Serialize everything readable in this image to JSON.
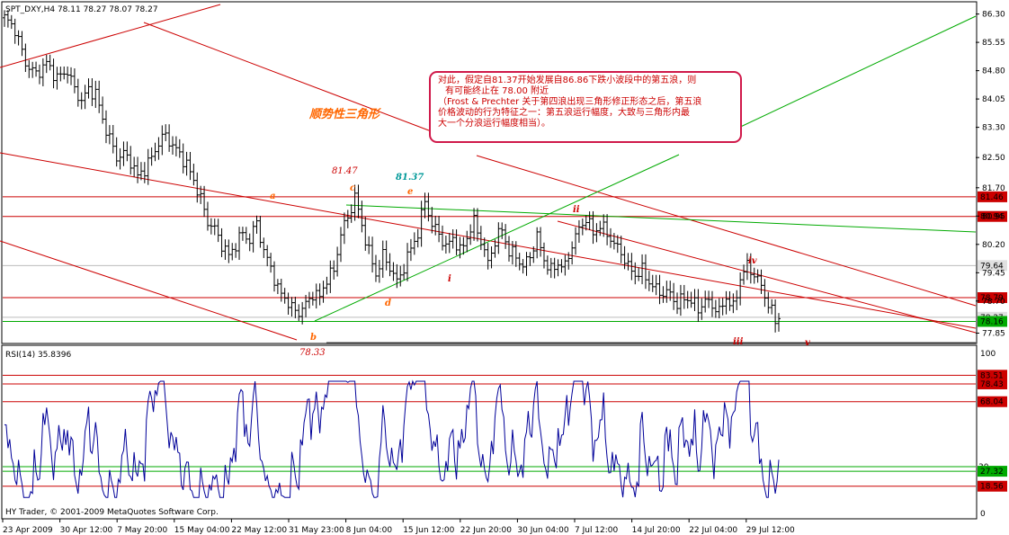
{
  "chart_header": "SPT_DXY,H4  78.11 78.27 78.07 78.27",
  "indicator_header": "RSI(14) 35.8396",
  "footer_credit": "HY Trader, © 2001-2009 MetaQuotes Software Corp.",
  "note_lines": [
    "对此，假定自81.37开始发展自86.86下跌小波段中的第五浪，则",
    "有可能终止在 78.00 附近",
    "（Frost & Prechter 关于第四浪出现三角形修正形态之后，第五浪",
    "价格波动的行为特征之一：第五浪运行幅度，大致与三角形内最",
    "大一个分浪运行幅度相当）。"
  ],
  "triangle_title": "顺势性三角形",
  "colors": {
    "red": "#cc0000",
    "green": "#00aa00",
    "orange": "#ff6600",
    "teal": "#009999",
    "rsi": "#000099",
    "box": "#e0e0e0"
  },
  "chart_data": [
    {
      "type": "candlestick",
      "timeframe": "H4",
      "symbol": "SPT_DXY",
      "last_ohlc": {
        "open": 78.11,
        "high": 78.27,
        "low": 78.07,
        "close": 78.27
      },
      "ylim": [
        77.6,
        86.6
      ],
      "y_ticks": [
        86.3,
        85.55,
        84.8,
        84.05,
        83.3,
        82.5,
        81.7,
        80.95,
        80.2,
        79.45,
        78.7,
        77.85
      ],
      "x_ticks": [
        "23 Apr 2009",
        "30 Apr 12:00",
        "7 May 20:00",
        "15 May 04:00",
        "22 May 12:00",
        "31 May 23:00",
        "8 Jun 04:00",
        "15 Jun 12:00",
        "22 Jun 20:00",
        "30 Jun 04:00",
        "7 Jul 12:00",
        "14 Jul 20:00",
        "22 Jul 04:00",
        "29 Jul 12:00"
      ],
      "price_path": [
        [
          0,
          86.2
        ],
        [
          3,
          85.9
        ],
        [
          6,
          85.0
        ],
        [
          9,
          84.7
        ],
        [
          12,
          85.0
        ],
        [
          15,
          84.6
        ],
        [
          18,
          84.8
        ],
        [
          20,
          84.3
        ],
        [
          22,
          84.0
        ],
        [
          24,
          84.3
        ],
        [
          26,
          84.2
        ],
        [
          28,
          83.5
        ],
        [
          30,
          83.0
        ],
        [
          32,
          82.5
        ],
        [
          34,
          82.6
        ],
        [
          36,
          82.4
        ],
        [
          38,
          82.0
        ],
        [
          40,
          82.2
        ],
        [
          42,
          82.5
        ],
        [
          44,
          82.9
        ],
        [
          46,
          83.1
        ],
        [
          48,
          82.8
        ],
        [
          50,
          82.6
        ],
        [
          52,
          82.3
        ],
        [
          54,
          81.9
        ],
        [
          56,
          81.4
        ],
        [
          58,
          80.8
        ],
        [
          60,
          80.6
        ],
        [
          62,
          80.2
        ],
        [
          64,
          79.9
        ],
        [
          66,
          80.2
        ],
        [
          68,
          80.5
        ],
        [
          70,
          80.3
        ],
        [
          72,
          80.8
        ],
        [
          74,
          80.0
        ],
        [
          76,
          79.6
        ],
        [
          78,
          79.0
        ],
        [
          80,
          78.8
        ],
        [
          82,
          78.5
        ],
        [
          84,
          78.4
        ],
        [
          86,
          78.6
        ],
        [
          88,
          78.9
        ],
        [
          90,
          78.8
        ],
        [
          92,
          79.3
        ],
        [
          94,
          79.5
        ],
        [
          96,
          80.5
        ],
        [
          98,
          80.9
        ],
        [
          100,
          81.47
        ],
        [
          102,
          80.7
        ],
        [
          104,
          80.0
        ],
        [
          106,
          79.4
        ],
        [
          108,
          79.9
        ],
        [
          110,
          79.6
        ],
        [
          112,
          79.2
        ],
        [
          114,
          79.6
        ],
        [
          116,
          80.1
        ],
        [
          118,
          80.5
        ],
        [
          120,
          81.37
        ],
        [
          122,
          80.7
        ],
        [
          124,
          80.5
        ],
        [
          126,
          80.1
        ],
        [
          128,
          80.4
        ],
        [
          130,
          80.0
        ],
        [
          132,
          80.4
        ],
        [
          134,
          80.8
        ],
        [
          136,
          80.3
        ],
        [
          138,
          79.7
        ],
        [
          140,
          80.3
        ],
        [
          142,
          80.6
        ],
        [
          144,
          80.0
        ],
        [
          146,
          79.9
        ],
        [
          148,
          79.6
        ],
        [
          150,
          79.9
        ],
        [
          152,
          80.4
        ],
        [
          154,
          79.8
        ],
        [
          156,
          79.5
        ],
        [
          158,
          79.7
        ],
        [
          160,
          79.6
        ],
        [
          162,
          80.2
        ],
        [
          164,
          80.6
        ],
        [
          166,
          80.9
        ],
        [
          168,
          80.5
        ],
        [
          170,
          80.7
        ],
        [
          172,
          80.5
        ],
        [
          174,
          80.2
        ],
        [
          176,
          80.0
        ],
        [
          178,
          79.6
        ],
        [
          180,
          79.4
        ],
        [
          182,
          79.5
        ],
        [
          184,
          79.2
        ],
        [
          186,
          79.0
        ],
        [
          188,
          78.9
        ],
        [
          190,
          78.9
        ],
        [
          192,
          78.6
        ],
        [
          194,
          78.8
        ],
        [
          196,
          78.7
        ],
        [
          198,
          78.5
        ],
        [
          200,
          78.7
        ],
        [
          202,
          78.6
        ],
        [
          204,
          78.4
        ],
        [
          206,
          78.8
        ],
        [
          208,
          78.5
        ],
        [
          210,
          79.3
        ],
        [
          212,
          79.64
        ],
        [
          214,
          79.4
        ],
        [
          216,
          79.1
        ],
        [
          218,
          78.6
        ],
        [
          220,
          78.2
        ],
        [
          221,
          78.27
        ]
      ],
      "horizontal_levels": [
        {
          "value": 81.46,
          "label": "81.46",
          "color": "red"
        },
        {
          "value": 80.94,
          "label": "80.94",
          "color": "red"
        },
        {
          "value": 79.64,
          "label": "79.64",
          "color": "box"
        },
        {
          "value": 78.79,
          "label": "78.79",
          "color": "red"
        },
        {
          "value": 78.27,
          "label": "78.27",
          "color": "box"
        },
        {
          "value": 78.16,
          "label": "78.16",
          "color": "green"
        }
      ],
      "wave_labels": [
        {
          "text": "a",
          "color": "orange"
        },
        {
          "text": "b",
          "color": "orange"
        },
        {
          "text": "c",
          "color": "orange"
        },
        {
          "text": "d",
          "color": "orange"
        },
        {
          "text": "e",
          "color": "orange"
        },
        {
          "text": "i",
          "color": "red"
        },
        {
          "text": "ii",
          "color": "red"
        },
        {
          "text": "iii",
          "color": "red"
        },
        {
          "text": "iv",
          "color": "red"
        },
        {
          "text": "v",
          "color": "red"
        }
      ],
      "price_annotations": [
        {
          "text": "81.47",
          "color": "red"
        },
        {
          "text": "81.37",
          "color": "teal"
        },
        {
          "text": "78.33",
          "color": "red"
        }
      ]
    },
    {
      "type": "line",
      "name": "RSI(14)",
      "last_value": 35.8396,
      "ylim": [
        0,
        100
      ],
      "y_ticks": [
        100,
        0
      ],
      "levels": [
        {
          "value": 83.51,
          "label": "83.51",
          "color": "red"
        },
        {
          "value": 78.43,
          "label": "78.43",
          "color": "red"
        },
        {
          "value": 68.04,
          "label": "68.04",
          "color": "red"
        },
        {
          "value": 30.0,
          "label": "30",
          "color": "green"
        },
        {
          "value": 27.32,
          "label": "27.32",
          "color": "green"
        },
        {
          "value": 18.56,
          "label": "18.56",
          "color": "red"
        }
      ]
    }
  ]
}
